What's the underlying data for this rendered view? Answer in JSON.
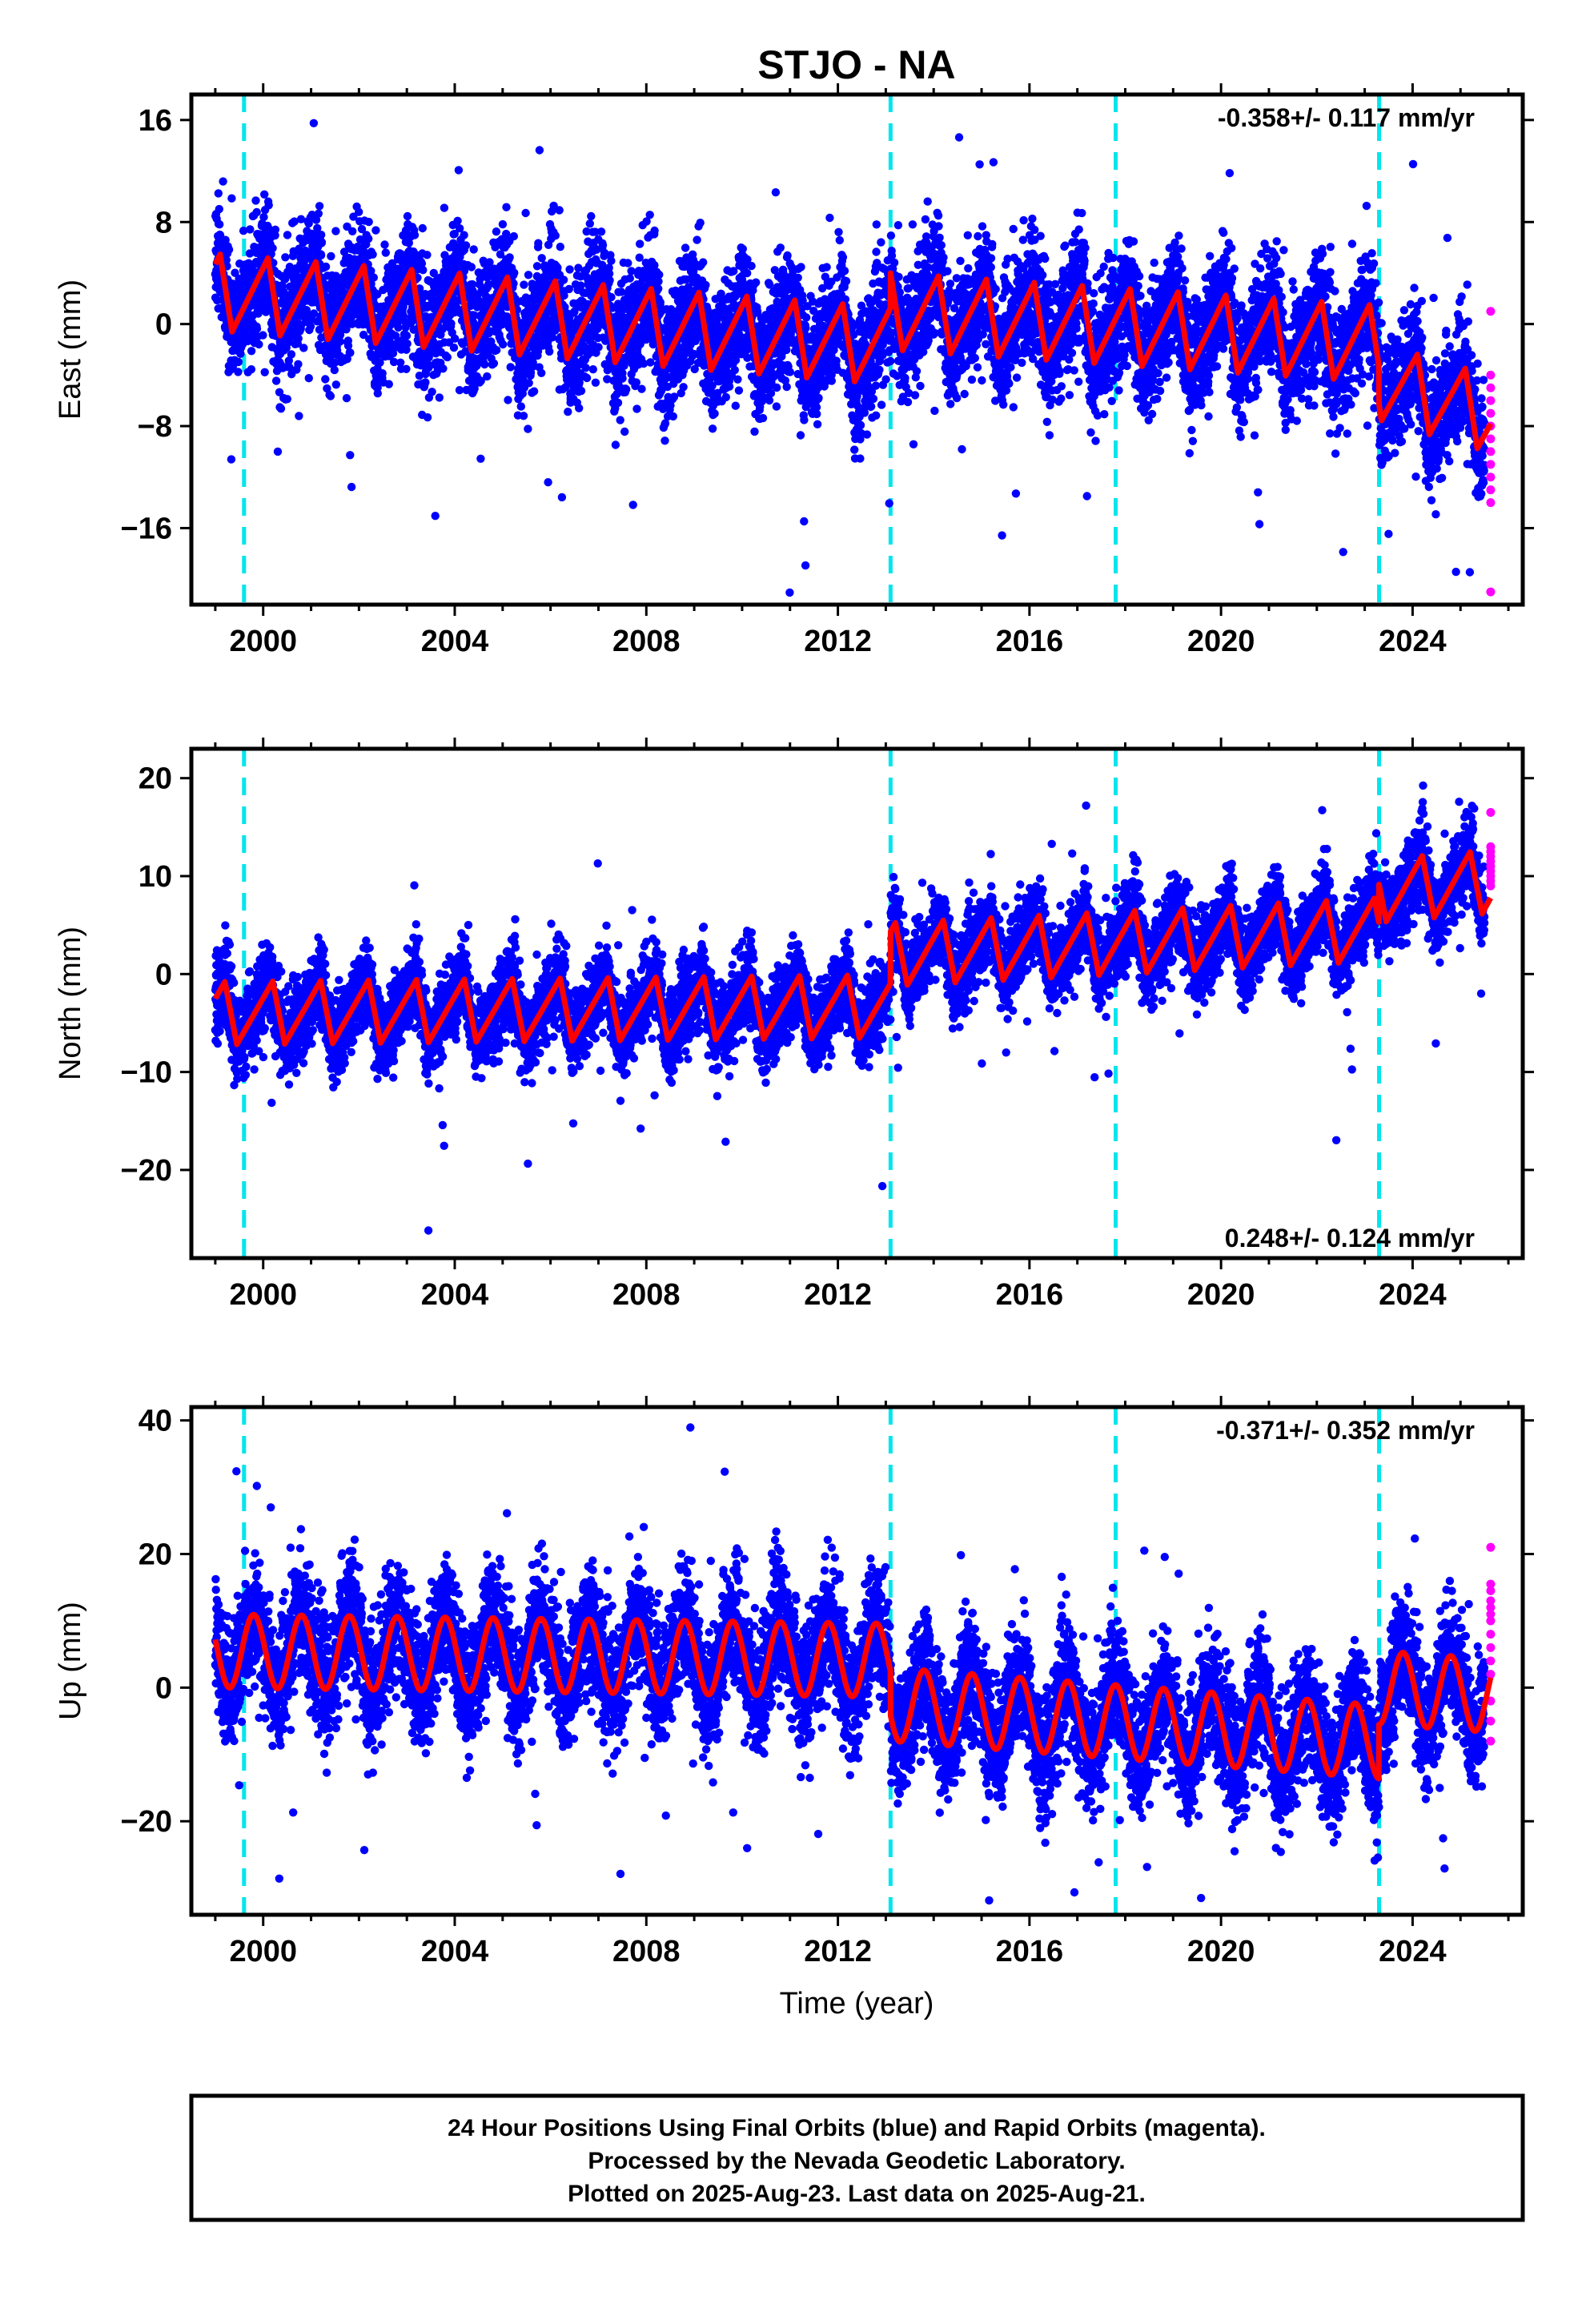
{
  "title": "STJO - NA",
  "xlabel": "Time (year)",
  "footer": {
    "line1": "24 Hour Positions Using Final Orbits (blue) and Rapid Orbits (magenta).",
    "line2": "Processed by the Nevada Geodetic Laboratory.",
    "line3": "Plotted on 2025-Aug-23. Last data on 2025-Aug-21."
  },
  "colors": {
    "final_orbits": "#0000ff",
    "rapid_orbits": "#ff00ff",
    "model_fit": "#ff0000",
    "steps": "#00e5ee"
  },
  "chart_data": [
    {
      "type": "scatter",
      "component": "East",
      "ylabel": "East (mm)",
      "rate_text": "-0.358+/- 0.117 mm/yr",
      "rate_position": "top-right",
      "xlim": [
        1998.5,
        2026.3
      ],
      "ylim": [
        -22,
        18
      ],
      "xticks": [
        2000,
        2004,
        2008,
        2012,
        2016,
        2020,
        2024
      ],
      "yticks": [
        16,
        8,
        0,
        -8,
        -16
      ],
      "ytick_labels": [
        "16",
        "8",
        "0",
        "−8",
        "−16"
      ],
      "step_epochs": [
        1999.6,
        2013.1,
        2017.8,
        2023.3
      ],
      "data_span": [
        1999.0,
        2025.63
      ],
      "rapid_span": [
        2025.5,
        2025.63
      ],
      "model": {
        "segments": [
          [
            1999.0,
            2013.1,
            2.5,
            -0.3
          ],
          [
            2013.1,
            2023.3,
            1.0,
            -0.25
          ],
          [
            2023.3,
            2025.63,
            -4.5,
            -1.1
          ]
        ],
        "ref_year": 1999.0,
        "annual_amp": 3.0,
        "annual_phase": 0.35,
        "sawtooth": true
      },
      "scatter_sigma": 2.3,
      "rapid_values": [
        1.0,
        -4,
        -5,
        -6,
        -7,
        -8,
        -9,
        -10,
        -11,
        -12,
        -13,
        -14,
        -21
      ]
    },
    {
      "type": "scatter",
      "component": "North",
      "ylabel": "North (mm)",
      "rate_text": "0.248+/- 0.124 mm/yr",
      "rate_position": "bottom-right",
      "xlim": [
        1998.5,
        2026.3
      ],
      "ylim": [
        -29,
        23
      ],
      "xticks": [
        2000,
        2004,
        2008,
        2012,
        2016,
        2020,
        2024
      ],
      "yticks": [
        20,
        10,
        0,
        -10,
        -20
      ],
      "ytick_labels": [
        "20",
        "10",
        "0",
        "−10",
        "−20"
      ],
      "step_epochs": [
        1999.6,
        2013.1,
        2017.8,
        2023.3
      ],
      "data_span": [
        1999.0,
        2025.63
      ],
      "rapid_span": [
        2025.5,
        2025.63
      ],
      "model": {
        "segments": [
          [
            1999.0,
            2013.1,
            -4.0,
            0.05
          ],
          [
            2013.1,
            2023.3,
            2.0,
            0.25
          ],
          [
            2023.3,
            2025.63,
            8.5,
            0.4
          ]
        ],
        "ref_year": 1999.0,
        "annual_amp": 3.2,
        "annual_phase": 0.45,
        "sawtooth": true
      },
      "scatter_sigma": 2.0,
      "rapid_values": [
        16.5,
        13,
        12.5,
        12,
        11.5,
        11,
        10.5,
        10,
        9.5,
        9
      ]
    },
    {
      "type": "scatter",
      "component": "Up",
      "ylabel": "Up (mm)",
      "rate_text": "-0.371+/- 0.352 mm/yr",
      "rate_position": "top-right",
      "xlim": [
        1998.5,
        2026.3
      ],
      "ylim": [
        -34,
        42
      ],
      "xticks": [
        2000,
        2004,
        2008,
        2012,
        2016,
        2020,
        2024
      ],
      "yticks": [
        40,
        20,
        0,
        -20
      ],
      "ytick_labels": [
        "40",
        "20",
        "0",
        "−20"
      ],
      "step_epochs": [
        1999.6,
        2013.1,
        2017.8,
        2023.3
      ],
      "data_span": [
        1999.0,
        2025.63
      ],
      "rapid_span": [
        2025.5,
        2025.63
      ],
      "model": {
        "segments": [
          [
            1999.0,
            2013.1,
            5.5,
            -0.1
          ],
          [
            2013.1,
            2023.3,
            -2.5,
            -0.55
          ],
          [
            2023.3,
            2025.63,
            0.0,
            -0.5
          ]
        ],
        "ref_year": 1999.0,
        "annual_amp": 5.5,
        "annual_phase": 0.55,
        "sawtooth": false
      },
      "scatter_sigma": 4.5,
      "rapid_values": [
        21,
        15.5,
        14.5,
        13,
        12,
        11,
        10,
        8,
        6,
        4,
        2,
        -2,
        -5,
        -8
      ]
    }
  ]
}
